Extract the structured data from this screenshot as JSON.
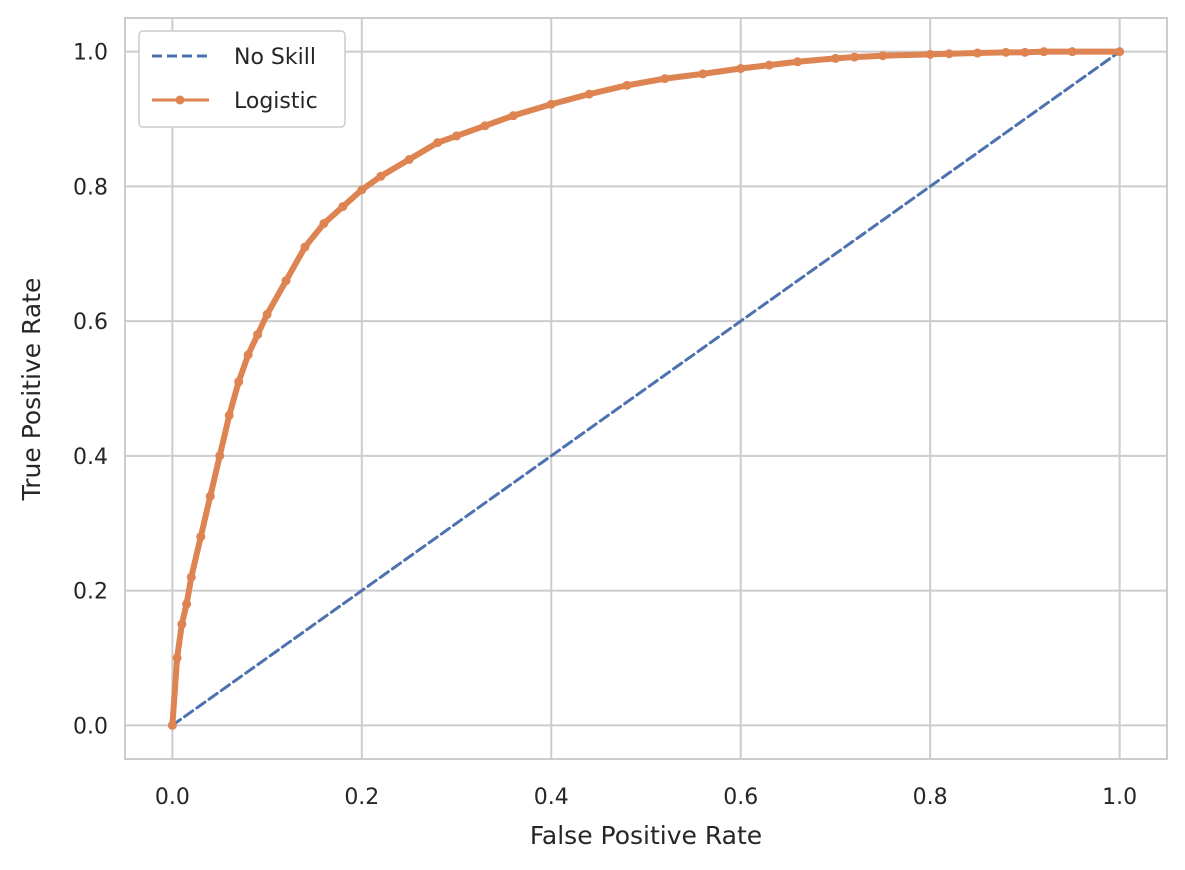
{
  "chart_data": {
    "type": "line",
    "title": "",
    "xlabel": "False Positive Rate",
    "ylabel": "True Positive Rate",
    "xlim": [
      -0.05,
      1.05
    ],
    "ylim": [
      -0.05,
      1.05
    ],
    "xticks": [
      "0.0",
      "0.2",
      "0.4",
      "0.6",
      "0.8",
      "1.0"
    ],
    "yticks": [
      "0.0",
      "0.2",
      "0.4",
      "0.6",
      "0.8",
      "1.0"
    ],
    "grid": true,
    "legend_position": "upper-left",
    "series": [
      {
        "name": "No Skill",
        "style": "dashed",
        "color": "#4c72b0",
        "x": [
          0.0,
          1.0
        ],
        "y": [
          0.0,
          1.0
        ]
      },
      {
        "name": "Logistic",
        "style": "solid-with-markers",
        "color": "#dd8452",
        "x": [
          0.0,
          0.005,
          0.01,
          0.015,
          0.02,
          0.03,
          0.04,
          0.05,
          0.06,
          0.07,
          0.08,
          0.09,
          0.1,
          0.12,
          0.14,
          0.16,
          0.18,
          0.2,
          0.22,
          0.25,
          0.28,
          0.3,
          0.33,
          0.36,
          0.4,
          0.44,
          0.48,
          0.52,
          0.56,
          0.6,
          0.63,
          0.66,
          0.7,
          0.72,
          0.75,
          0.8,
          0.82,
          0.85,
          0.88,
          0.9,
          0.92,
          0.95,
          1.0
        ],
        "y": [
          0.0,
          0.1,
          0.15,
          0.18,
          0.22,
          0.28,
          0.34,
          0.4,
          0.46,
          0.51,
          0.55,
          0.58,
          0.61,
          0.66,
          0.71,
          0.745,
          0.77,
          0.795,
          0.815,
          0.84,
          0.865,
          0.875,
          0.89,
          0.905,
          0.922,
          0.937,
          0.95,
          0.96,
          0.967,
          0.975,
          0.98,
          0.985,
          0.99,
          0.992,
          0.994,
          0.996,
          0.997,
          0.998,
          0.999,
          0.999,
          1.0,
          1.0,
          1.0
        ]
      }
    ]
  }
}
